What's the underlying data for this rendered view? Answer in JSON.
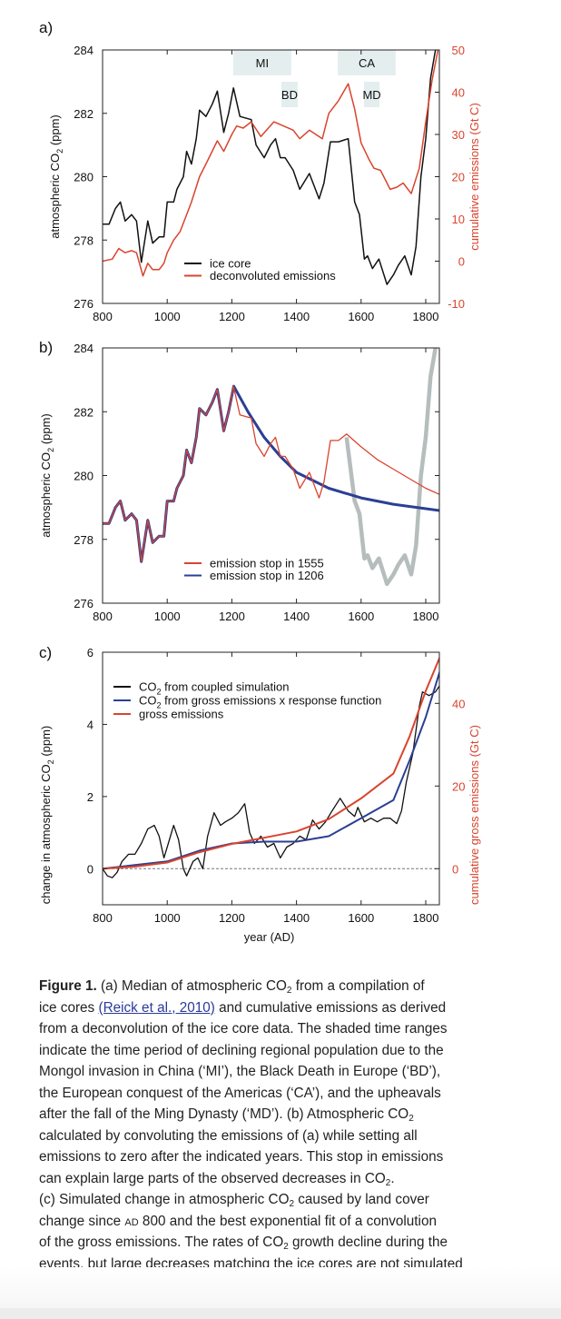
{
  "colors": {
    "red": "#d9442e",
    "black": "#111111",
    "blue": "#2b3f93",
    "grey": "#b6bdbd",
    "shade": "#e4eeee",
    "link": "#2a3a9c"
  },
  "chart_data": [
    {
      "panel_label": "a)",
      "type": "line",
      "xlim": [
        800,
        1845
      ],
      "xticks": [
        800,
        1000,
        1200,
        1400,
        1600,
        1800
      ],
      "ylabel": "atmospheric CO2 (ppm)",
      "ylim": [
        276,
        284
      ],
      "yticks": [
        276,
        278,
        280,
        282,
        284
      ],
      "ylabel_right": "cumulative emissions (Gt C)",
      "ylim_right": [
        -10,
        50
      ],
      "yticks_right": [
        -10,
        0,
        10,
        20,
        30,
        40,
        50
      ],
      "shaded_ranges": [
        {
          "label": "MI",
          "from": 1204,
          "to": 1384,
          "row": 1
        },
        {
          "label": "BD",
          "from": 1353,
          "to": 1404,
          "row": 2
        },
        {
          "label": "CA",
          "from": 1528,
          "to": 1707,
          "row": 1
        },
        {
          "label": "MD",
          "from": 1609,
          "to": 1657,
          "row": 2
        }
      ],
      "legend_position": "bottom-center",
      "series": [
        {
          "name": "ice core",
          "color": "#111111",
          "axis": "left",
          "x": [
            800,
            820,
            840,
            855,
            870,
            890,
            905,
            920,
            940,
            955,
            975,
            990,
            1000,
            1020,
            1030,
            1050,
            1060,
            1075,
            1090,
            1100,
            1120,
            1140,
            1155,
            1175,
            1190,
            1205,
            1225,
            1260,
            1275,
            1300,
            1320,
            1335,
            1350,
            1365,
            1390,
            1410,
            1440,
            1470,
            1485,
            1505,
            1530,
            1560,
            1580,
            1595,
            1610,
            1620,
            1635,
            1655,
            1680,
            1700,
            1715,
            1735,
            1755,
            1770,
            1785,
            1800,
            1815,
            1830,
            1845
          ],
          "y": [
            278.5,
            278.5,
            279.0,
            279.2,
            278.6,
            278.8,
            278.6,
            277.3,
            278.6,
            277.9,
            278.1,
            278.1,
            279.2,
            279.2,
            279.6,
            280.0,
            280.8,
            280.4,
            281.2,
            282.1,
            281.9,
            282.3,
            282.7,
            281.4,
            282.0,
            282.8,
            281.9,
            281.8,
            281.0,
            280.6,
            281.0,
            281.2,
            280.6,
            280.6,
            280.2,
            279.6,
            280.1,
            279.3,
            279.8,
            281.1,
            281.1,
            281.2,
            279.2,
            278.8,
            277.4,
            277.5,
            277.1,
            277.4,
            276.6,
            276.9,
            277.2,
            277.5,
            276.9,
            277.8,
            280.0,
            281.2,
            283.1,
            284.0,
            284.6
          ]
        },
        {
          "name": "deconvoluted emissions",
          "color": "#d9442e",
          "axis": "right",
          "x": [
            800,
            830,
            850,
            870,
            890,
            905,
            925,
            940,
            955,
            975,
            990,
            1000,
            1020,
            1040,
            1055,
            1075,
            1100,
            1120,
            1155,
            1175,
            1200,
            1215,
            1235,
            1260,
            1290,
            1330,
            1360,
            1390,
            1410,
            1440,
            1480,
            1500,
            1530,
            1560,
            1580,
            1600,
            1625,
            1640,
            1660,
            1690,
            1710,
            1730,
            1755,
            1780,
            1800,
            1820,
            1838,
            1845
          ],
          "y": [
            0,
            0.5,
            3,
            2,
            2.5,
            2,
            -3.5,
            -0.5,
            -2,
            -2,
            -0.5,
            2,
            5,
            7,
            10,
            14,
            20,
            23,
            28.5,
            26,
            30,
            32,
            31.5,
            33,
            29.5,
            33,
            32,
            31,
            29,
            31,
            29,
            35,
            38,
            42,
            36,
            28,
            24,
            22,
            21.5,
            17,
            17.5,
            18.5,
            16,
            22,
            33,
            43,
            50,
            52
          ]
        }
      ]
    },
    {
      "panel_label": "b)",
      "type": "line",
      "xlim": [
        800,
        1845
      ],
      "xticks": [
        800,
        1000,
        1200,
        1400,
        1600,
        1800
      ],
      "ylabel": "atmospheric CO2 (ppm)",
      "ylim": [
        276,
        284
      ],
      "yticks": [
        276,
        278,
        280,
        282,
        284
      ],
      "legend_position": "bottom-center",
      "series": [
        {
          "name": "emission stop in 1555",
          "color": "#d9442e",
          "x": [
            800,
            820,
            840,
            855,
            870,
            890,
            905,
            920,
            940,
            955,
            975,
            990,
            1000,
            1020,
            1030,
            1050,
            1060,
            1075,
            1090,
            1100,
            1120,
            1140,
            1155,
            1175,
            1190,
            1205,
            1225,
            1260,
            1275,
            1300,
            1320,
            1335,
            1350,
            1365,
            1390,
            1410,
            1440,
            1470,
            1485,
            1505,
            1530,
            1555,
            1600,
            1650,
            1700,
            1750,
            1800,
            1845
          ],
          "y": [
            278.5,
            278.5,
            279.0,
            279.2,
            278.6,
            278.8,
            278.6,
            277.3,
            278.6,
            277.9,
            278.1,
            278.1,
            279.2,
            279.2,
            279.6,
            280.0,
            280.8,
            280.4,
            281.2,
            282.1,
            281.9,
            282.3,
            282.7,
            281.4,
            282.0,
            282.8,
            281.9,
            281.8,
            281.0,
            280.6,
            281.0,
            281.2,
            280.6,
            280.6,
            280.2,
            279.6,
            280.1,
            279.3,
            279.8,
            281.1,
            281.1,
            281.3,
            280.9,
            280.5,
            280.2,
            279.9,
            279.6,
            279.4
          ]
        },
        {
          "name": "emission stop in 1206",
          "color": "#2b3f93",
          "x": [
            800,
            820,
            840,
            855,
            870,
            890,
            905,
            920,
            940,
            955,
            975,
            990,
            1000,
            1020,
            1030,
            1050,
            1060,
            1075,
            1090,
            1100,
            1120,
            1140,
            1155,
            1175,
            1190,
            1206,
            1250,
            1300,
            1350,
            1400,
            1500,
            1600,
            1700,
            1845
          ],
          "y": [
            278.5,
            278.5,
            279.0,
            279.2,
            278.6,
            278.8,
            278.6,
            277.3,
            278.6,
            277.9,
            278.1,
            278.1,
            279.2,
            279.2,
            279.6,
            280.0,
            280.8,
            280.4,
            281.2,
            282.1,
            281.9,
            282.3,
            282.7,
            281.4,
            282.0,
            282.8,
            282.0,
            281.2,
            280.6,
            280.1,
            279.6,
            279.3,
            279.1,
            278.9
          ]
        },
        {
          "name": "ice core (after 1555)",
          "color": "#b6bdbd",
          "in_legend": false,
          "x": [
            1555,
            1580,
            1595,
            1610,
            1620,
            1635,
            1655,
            1680,
            1700,
            1715,
            1735,
            1755,
            1770,
            1785,
            1800,
            1815,
            1830,
            1845
          ],
          "y": [
            281.2,
            279.2,
            278.8,
            277.4,
            277.5,
            277.1,
            277.4,
            276.6,
            276.9,
            277.2,
            277.5,
            276.9,
            277.8,
            280.0,
            281.2,
            283.1,
            284.0,
            284.6
          ]
        }
      ]
    },
    {
      "panel_label": "c)",
      "type": "line",
      "xlim": [
        800,
        1845
      ],
      "xticks": [
        800,
        1000,
        1200,
        1400,
        1600,
        1800
      ],
      "xlabel": "year (AD)",
      "ylabel": "change in atmospheric CO2 (ppm)",
      "ylim": [
        -1,
        6
      ],
      "yticks": [
        0,
        2,
        4,
        6
      ],
      "ylabel_right": "cumulative gross emissions (Gt C)",
      "yticks_right": [
        0,
        20,
        40
      ],
      "zero_line": true,
      "legend_position": "top-left",
      "series": [
        {
          "name": "CO2 from coupled simulation",
          "color": "#111111",
          "axis": "left",
          "x": [
            800,
            815,
            830,
            845,
            860,
            880,
            900,
            920,
            940,
            960,
            975,
            990,
            1000,
            1020,
            1035,
            1050,
            1060,
            1080,
            1095,
            1110,
            1125,
            1145,
            1165,
            1180,
            1200,
            1220,
            1240,
            1255,
            1270,
            1290,
            1310,
            1330,
            1350,
            1370,
            1390,
            1410,
            1430,
            1450,
            1470,
            1490,
            1510,
            1535,
            1560,
            1580,
            1590,
            1610,
            1630,
            1650,
            1670,
            1690,
            1710,
            1725,
            1740,
            1760,
            1780,
            1790,
            1810,
            1830,
            1845
          ],
          "y": [
            0,
            -0.2,
            -0.25,
            -0.1,
            0.2,
            0.4,
            0.4,
            0.7,
            1.1,
            1.2,
            0.9,
            0.3,
            0.6,
            1.2,
            0.8,
            0.0,
            -0.2,
            0.2,
            0.3,
            0.0,
            0.9,
            1.55,
            1.2,
            1.3,
            1.4,
            1.55,
            1.8,
            1.0,
            0.7,
            0.9,
            0.6,
            0.7,
            0.3,
            0.6,
            0.7,
            0.9,
            0.8,
            1.35,
            1.1,
            1.3,
            1.6,
            1.95,
            1.6,
            1.45,
            1.7,
            1.3,
            1.4,
            1.3,
            1.4,
            1.4,
            1.25,
            1.6,
            2.4,
            3.2,
            4.5,
            4.9,
            4.8,
            4.9,
            5.1
          ]
        },
        {
          "name": "CO2 from gross emissions x response function",
          "color": "#2b3f93",
          "axis": "left",
          "x": [
            800,
            900,
            1000,
            1100,
            1200,
            1300,
            1400,
            1500,
            1600,
            1700,
            1750,
            1800,
            1848
          ],
          "y": [
            0,
            0.1,
            0.2,
            0.5,
            0.7,
            0.75,
            0.75,
            0.9,
            1.4,
            1.9,
            3.0,
            4.2,
            5.6
          ]
        },
        {
          "name": "gross emissions",
          "color": "#d9442e",
          "axis": "right",
          "x": [
            800,
            900,
            1000,
            1100,
            1200,
            1300,
            1400,
            1500,
            1600,
            1700,
            1750,
            1800,
            1848
          ],
          "y": [
            0,
            0.5,
            1.5,
            4,
            6,
            7.5,
            9,
            12,
            17,
            23,
            32,
            43,
            52
          ]
        }
      ]
    }
  ],
  "caption": {
    "lines": [
      [
        {
          "t": "Figure 1.",
          "s": "bold"
        },
        {
          "t": "  (a) Median of atmospheric CO"
        },
        {
          "t": "2",
          "s": "sub"
        },
        {
          "t": " from a compilation of"
        }
      ],
      [
        {
          "t": "ice cores "
        },
        {
          "t": "(Reick et al., 2010)",
          "s": "link"
        },
        {
          "t": " and cumulative emissions as derived"
        }
      ],
      [
        {
          "t": "from a deconvolution of the ice core data. The shaded time ranges"
        }
      ],
      [
        {
          "t": "indicate the time period of declining regional population due to the"
        }
      ],
      [
        {
          "t": "Mongol invasion in China (‘MI’), the Black Death in Europe (‘BD’),"
        }
      ],
      [
        {
          "t": "the European conquest of the Americas (‘CA’), and the upheavals"
        }
      ],
      [
        {
          "t": "after the fall of the Ming Dynasty (‘MD’). (b) Atmospheric CO"
        },
        {
          "t": "2",
          "s": "sub"
        }
      ],
      [
        {
          "t": "calculated by convoluting the emissions of (a) while setting all"
        }
      ],
      [
        {
          "t": "emissions to zero after the indicated years. This stop in emissions"
        }
      ],
      [
        {
          "t": "can explain large parts of the observed decreases in CO"
        },
        {
          "t": "2",
          "s": "sub"
        },
        {
          "t": "."
        }
      ],
      [
        {
          "t": "(c) Simulated change in atmospheric CO"
        },
        {
          "t": "2",
          "s": "sub"
        },
        {
          "t": " caused by land cover"
        }
      ],
      [
        {
          "t": "change since "
        },
        {
          "t": "AD",
          "s": "sc"
        },
        {
          "t": " 800 and the best exponential fit of a convolution"
        }
      ],
      [
        {
          "t": "of the gross emissions. The rates of CO"
        },
        {
          "t": "2",
          "s": "sub"
        },
        {
          "t": " growth decline during the"
        }
      ],
      [
        {
          "t": "events, but large decreases matching the ice cores are not simulated"
        }
      ]
    ]
  }
}
